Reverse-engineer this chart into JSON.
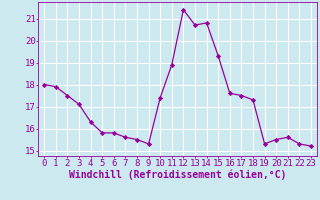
{
  "x": [
    0,
    1,
    2,
    3,
    4,
    5,
    6,
    7,
    8,
    9,
    10,
    11,
    12,
    13,
    14,
    15,
    16,
    17,
    18,
    19,
    20,
    21,
    22,
    23
  ],
  "y": [
    18.0,
    17.9,
    17.5,
    17.1,
    16.3,
    15.8,
    15.8,
    15.6,
    15.5,
    15.3,
    17.4,
    18.9,
    21.4,
    20.7,
    20.8,
    19.3,
    17.6,
    17.5,
    17.3,
    15.3,
    15.5,
    15.6,
    15.3,
    15.2
  ],
  "line_color": "#990099",
  "marker": "D",
  "marker_size": 2.2,
  "bg_color": "#cce9f0",
  "grid_color": "#ffffff",
  "tick_color": "#990099",
  "xlabel": "Windchill (Refroidissement éolien,°C)",
  "xlabel_color": "#990099",
  "ylim": [
    14.75,
    21.75
  ],
  "yticks": [
    15,
    16,
    17,
    18,
    19,
    20,
    21
  ],
  "xticks": [
    0,
    1,
    2,
    3,
    4,
    5,
    6,
    7,
    8,
    9,
    10,
    11,
    12,
    13,
    14,
    15,
    16,
    17,
    18,
    19,
    20,
    21,
    22,
    23
  ],
  "tick_fontsize": 6.5,
  "xlabel_fontsize": 7.0,
  "linewidth": 0.9
}
